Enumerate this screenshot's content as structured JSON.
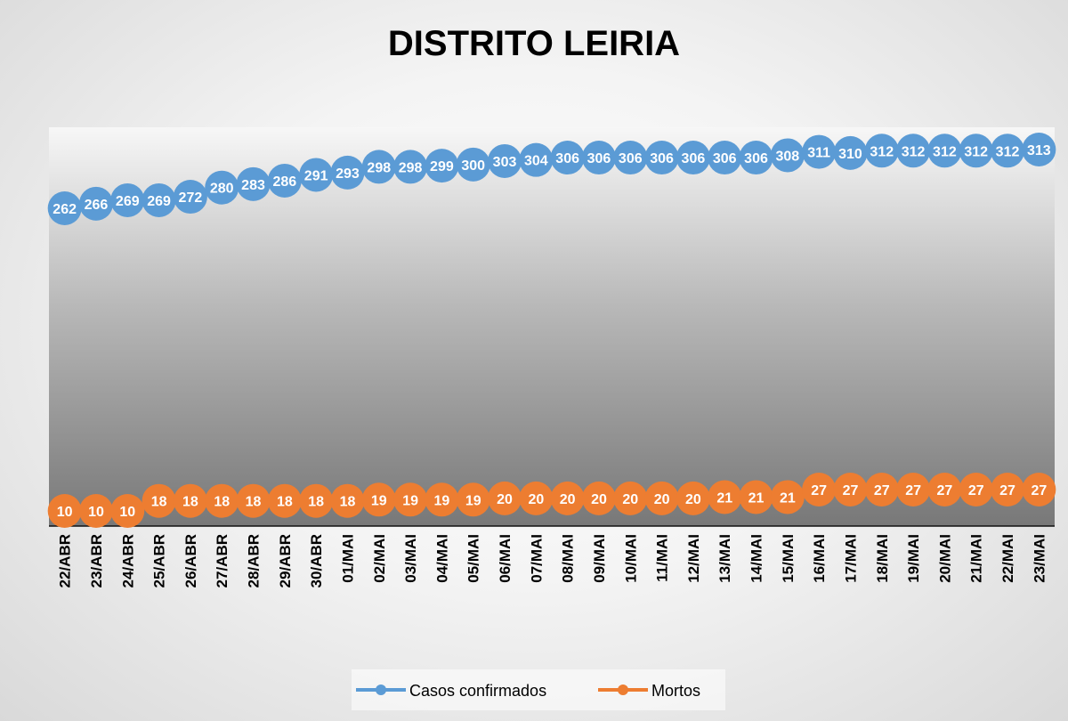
{
  "chart_data": {
    "type": "line",
    "title": "DISTRITO LEIRIA",
    "xlabel": "",
    "ylabel": "",
    "categories": [
      "22/ABR",
      "23/ABR",
      "24/ABR",
      "25/ABR",
      "26/ABR",
      "27/ABR",
      "28/ABR",
      "29/ABR",
      "30/ABR",
      "01/MAI",
      "02/MAI",
      "03/MAI",
      "04/MAI",
      "05/MAI",
      "06/MAI",
      "07/MAI",
      "08/MAI",
      "09/MAI",
      "10/MAI",
      "11/MAI",
      "12/MAI",
      "13/MAI",
      "14/MAI",
      "15/MAI",
      "16/MAI",
      "17/MAI",
      "18/MAI",
      "19/MAI",
      "20/MAI",
      "21/MAI",
      "22/MAI",
      "23/MAI"
    ],
    "series": [
      {
        "name": "Casos confirmados",
        "color": "#5b9bd5",
        "values": [
          262,
          266,
          269,
          269,
          272,
          280,
          283,
          286,
          291,
          293,
          298,
          298,
          299,
          300,
          303,
          304,
          306,
          306,
          306,
          306,
          306,
          306,
          306,
          308,
          311,
          310,
          312,
          312,
          312,
          312,
          312,
          313
        ]
      },
      {
        "name": "Mortos",
        "color": "#ed7d31",
        "values": [
          10,
          10,
          10,
          18,
          18,
          18,
          18,
          18,
          18,
          18,
          19,
          19,
          19,
          19,
          20,
          20,
          20,
          20,
          20,
          20,
          20,
          21,
          21,
          21,
          27,
          27,
          27,
          27,
          27,
          27,
          27,
          27
        ]
      }
    ],
    "data_labels": true,
    "grid": false,
    "legend_position": "bottom"
  }
}
